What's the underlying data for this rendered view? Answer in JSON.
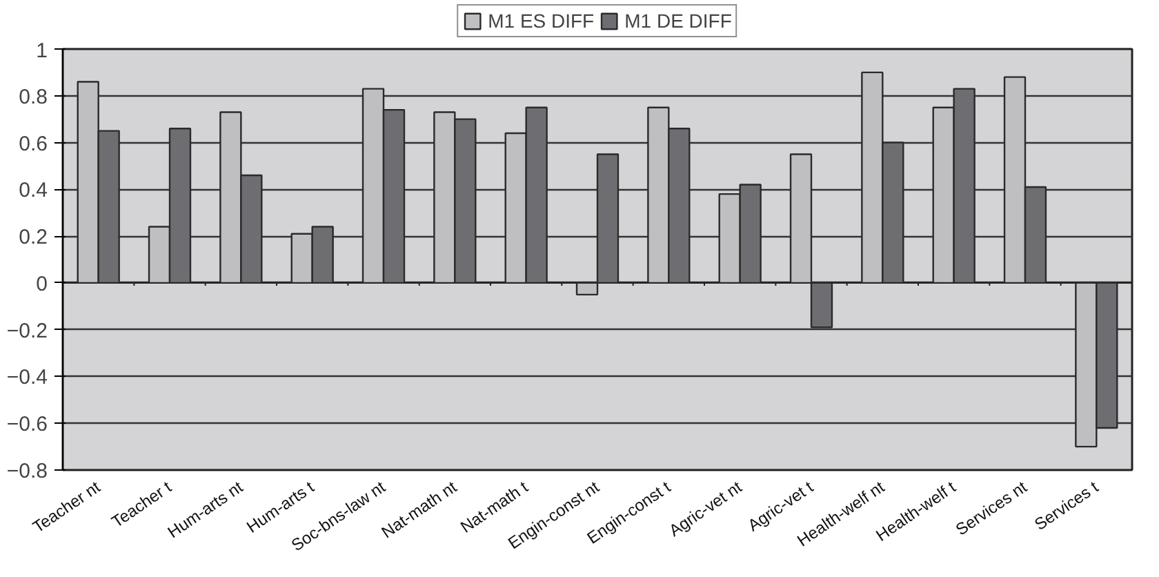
{
  "chart_data": {
    "type": "bar",
    "categories": [
      "Teacher nt",
      "Teacher t",
      "Hum-arts nt",
      "Hum-arts t",
      "Soc-bns-law nt",
      "Nat-math nt",
      "Nat-math t",
      "Engin-const nt",
      "Engin-const t",
      "Agric-vet nt",
      "Agric-vet t",
      "Health-welf nt",
      "Health-welf t",
      "Services nt",
      "Services t"
    ],
    "series": [
      {
        "name": "M1 ES DIFF",
        "color": "#bfbfc1",
        "values": [
          0.86,
          0.24,
          0.73,
          0.21,
          0.83,
          0.73,
          0.64,
          -0.05,
          0.75,
          0.38,
          0.55,
          0.9,
          0.75,
          0.88,
          -0.7
        ]
      },
      {
        "name": "M1 DE DIFF",
        "color": "#6e6e72",
        "values": [
          0.65,
          0.66,
          0.46,
          0.24,
          0.74,
          0.7,
          0.75,
          0.55,
          0.66,
          0.42,
          -0.19,
          0.6,
          0.83,
          0.41,
          -0.62
        ]
      }
    ],
    "ylim": [
      -0.8,
      1
    ],
    "yticks": [
      {
        "value": -0.8,
        "label": "−0.8"
      },
      {
        "value": -0.6,
        "label": "−0.6"
      },
      {
        "value": -0.4,
        "label": "−0.4"
      },
      {
        "value": -0.2,
        "label": "−0.2"
      },
      0,
      0.2,
      0.4,
      0.6,
      0.8,
      1
    ],
    "grid": "y",
    "legend": "top"
  }
}
